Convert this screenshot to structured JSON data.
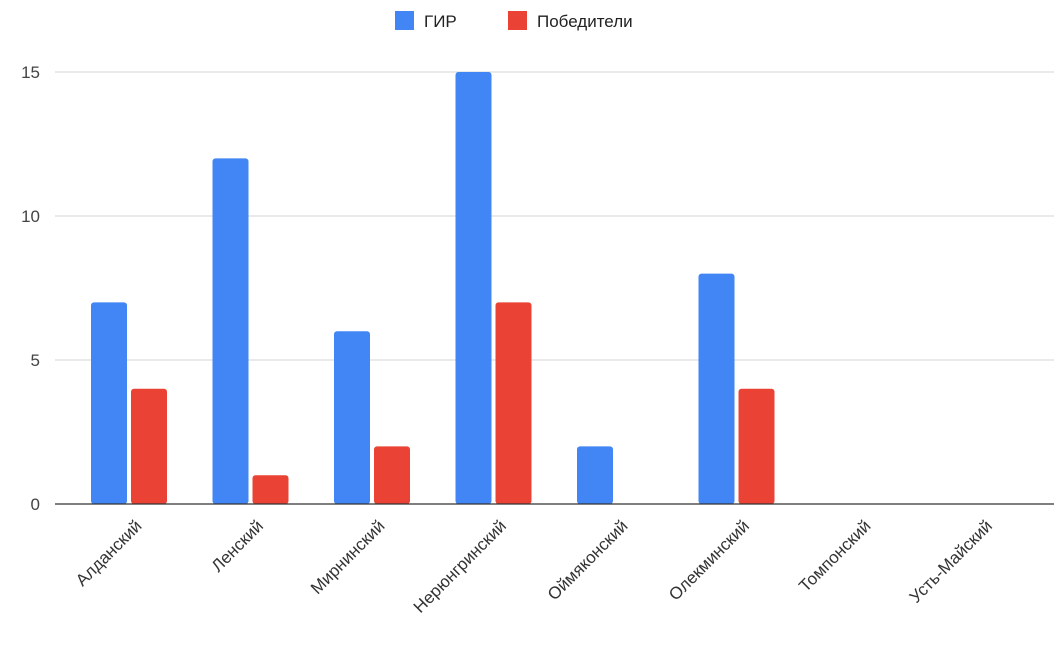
{
  "chart_data": {
    "type": "bar",
    "title": "",
    "xlabel": "",
    "ylabel": "",
    "categories": [
      "Алданский",
      "Ленский",
      "Мирнинский",
      "Нерюнгринский",
      "Оймяконский",
      "Олекминский",
      "Томпонский",
      "Усть-Майский"
    ],
    "series": [
      {
        "name": "ГИР",
        "color": "#4285f4",
        "values": [
          7,
          12,
          6,
          15,
          2,
          8,
          0,
          0
        ]
      },
      {
        "name": "Победители",
        "color": "#ea4335",
        "values": [
          4,
          1,
          2,
          7,
          0,
          4,
          0,
          0
        ]
      }
    ],
    "ylim": [
      0,
      15
    ],
    "yticks": [
      0,
      5,
      10,
      15
    ],
    "grid": true,
    "legend_position": "top-center"
  }
}
